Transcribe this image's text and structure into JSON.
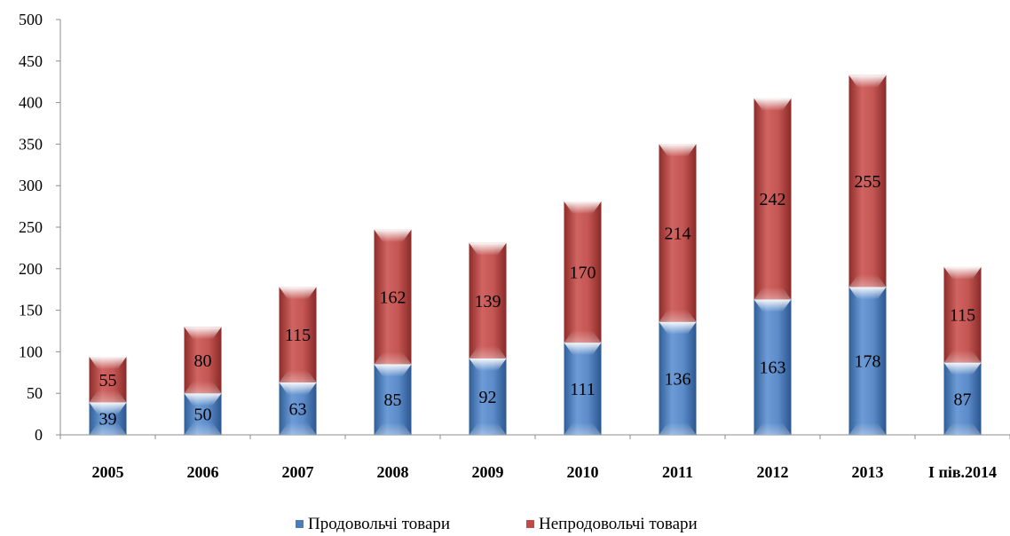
{
  "chart_data": {
    "type": "bar",
    "stacked": true,
    "categories": [
      "2005",
      "2006",
      "2007",
      "2008",
      "2009",
      "2010",
      "2011",
      "2012",
      "2013",
      "І пів.2014"
    ],
    "series": [
      {
        "name": "Продовольчі товари",
        "values": [
          39,
          50,
          63,
          85,
          92,
          111,
          136,
          163,
          178,
          87
        ],
        "color": "#4a7ebb"
      },
      {
        "name": "Непродовольчі товари",
        "values": [
          55,
          80,
          115,
          162,
          139,
          170,
          214,
          242,
          255,
          115
        ],
        "color": "#be4b48"
      }
    ],
    "ylim": [
      0,
      500
    ],
    "yticks": [
      0,
      50,
      100,
      150,
      200,
      250,
      300,
      350,
      400,
      450,
      500
    ],
    "legend_position": "bottom",
    "grid": false
  }
}
